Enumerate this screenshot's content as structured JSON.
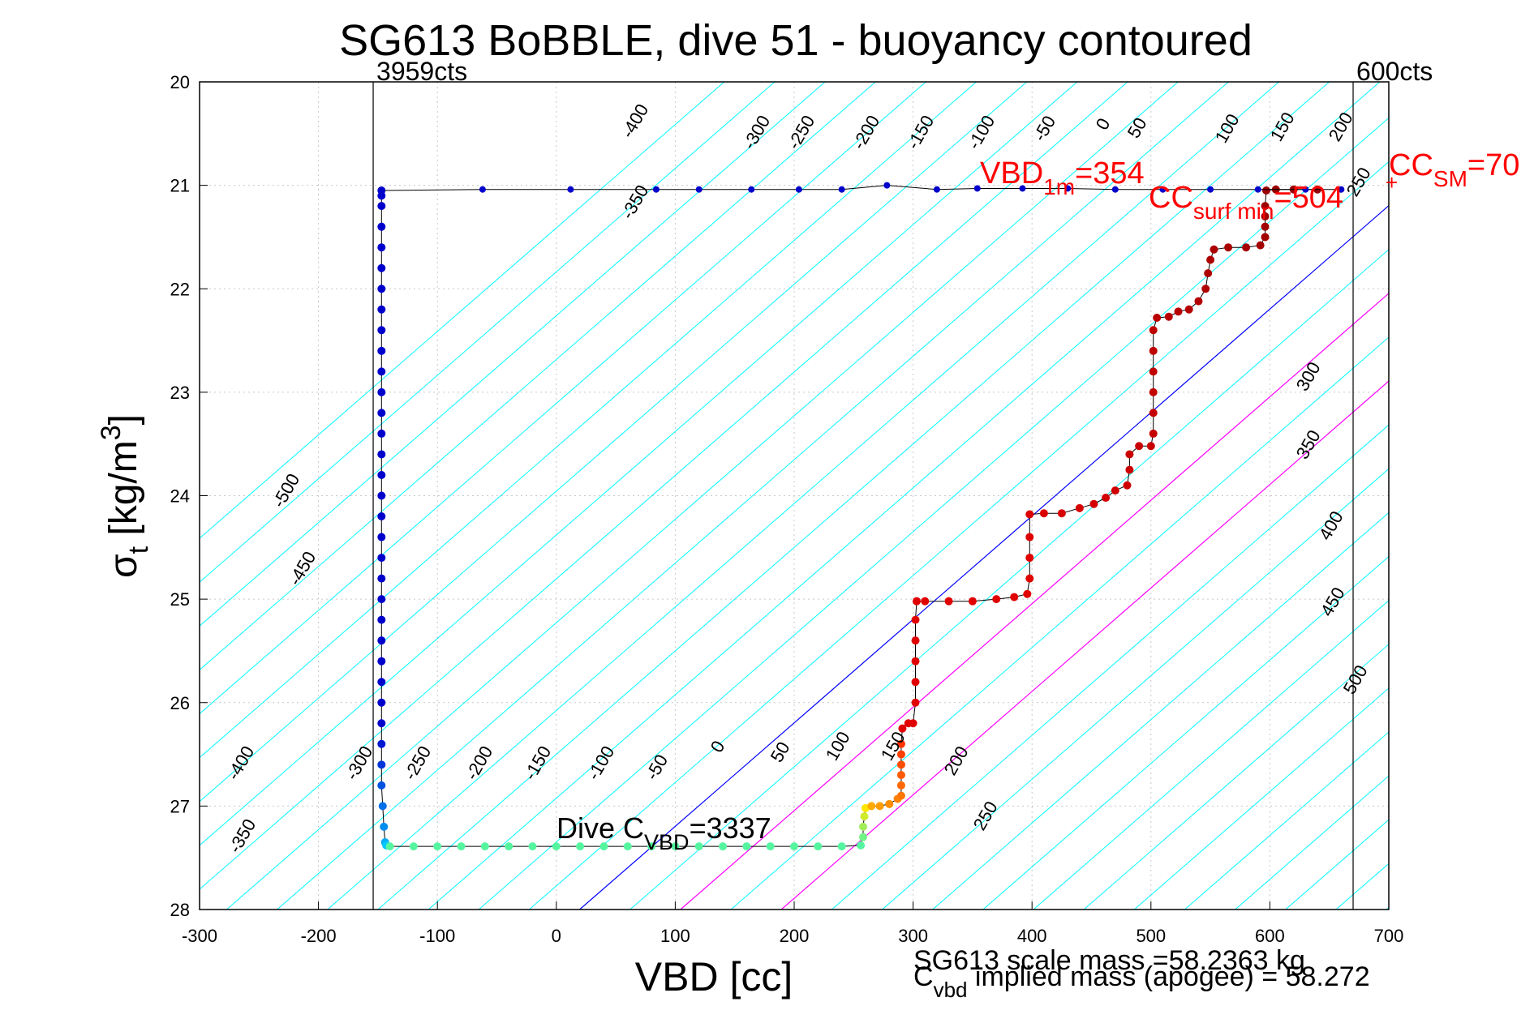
{
  "figure": {
    "title": "SG613 BoBBLE, dive 51 - buoyancy contoured",
    "xlabel": "VBD [cc]",
    "ylabel_base": "σ",
    "ylabel_sub": "t",
    "ylabel_rest": " [kg/m",
    "ylabel_sup": "3",
    "ylabel_close": "]",
    "footer_line1": "SG613 scale mass =58.2363 kg",
    "footer_line2_base": "C",
    "footer_line2_sub": "vbd",
    "footer_line2_rest": " implied mass (apogee) = 58.272"
  },
  "colors": {
    "contour": "#00ffff",
    "zero_contour": "#0000ff",
    "magenta": "#ff00ff",
    "red_text": "#ff0000",
    "dive_blue": "#0000cc",
    "climb_red": "#990000",
    "grid": "#c8c8c8",
    "axis": "#000000"
  },
  "chart_data": {
    "type": "scatter",
    "xlim": [
      -300,
      700
    ],
    "ylim": [
      28,
      20
    ],
    "xticks": [
      -300,
      -200,
      -100,
      0,
      100,
      200,
      300,
      400,
      500,
      600,
      700
    ],
    "yticks": [
      20,
      21,
      22,
      23,
      24,
      25,
      26,
      27,
      28
    ],
    "grid": true,
    "vertical_lines": [
      {
        "x": -154,
        "label": "3959cts"
      },
      {
        "x": 670,
        "label": "600cts"
      }
    ],
    "annotations": {
      "vbd_1m": {
        "base": "VBD",
        "sub": "1m",
        "rest": "=354"
      },
      "cc_surf_min": {
        "base": "CC",
        "sub": "surf min",
        "rest": "=504"
      },
      "cc_sm": {
        "base": "CC",
        "sub": "SM",
        "rest": "=70"
      },
      "dive_cvbd": {
        "base": "Dive C",
        "sub": "VBD",
        "rest": "=3337"
      }
    },
    "contour_labels_top": [
      "-400",
      "-350",
      "-300",
      "-250",
      "-200",
      "-150",
      "-100",
      "-50",
      "0",
      "50",
      "100",
      "150",
      "200",
      "250",
      "300",
      "350",
      "400",
      "450",
      "500"
    ],
    "contour_labels_bottom": [
      "-500",
      "-450",
      "-400",
      "-350",
      "-300",
      "-250",
      "-200",
      "-150",
      "-100",
      "-50",
      "0",
      "50",
      "100",
      "150",
      "200",
      "250"
    ],
    "series": [
      {
        "name": "dive",
        "points": [
          [
            -147,
            21.05
          ],
          [
            -147,
            21.1
          ],
          [
            -147,
            21.2
          ],
          [
            -147,
            21.4
          ],
          [
            -147,
            21.6
          ],
          [
            -147,
            21.8
          ],
          [
            -147,
            22.0
          ],
          [
            -147,
            22.2
          ],
          [
            -147,
            22.4
          ],
          [
            -147,
            22.6
          ],
          [
            -147,
            22.8
          ],
          [
            -147,
            23.0
          ],
          [
            -147,
            23.2
          ],
          [
            -147,
            23.4
          ],
          [
            -147,
            23.6
          ],
          [
            -147,
            23.8
          ],
          [
            -147,
            24.0
          ],
          [
            -147,
            24.2
          ],
          [
            -147,
            24.4
          ],
          [
            -147,
            24.6
          ],
          [
            -147,
            24.8
          ],
          [
            -147,
            25.0
          ],
          [
            -147,
            25.2
          ],
          [
            -147,
            25.4
          ],
          [
            -147,
            25.6
          ],
          [
            -147,
            25.8
          ],
          [
            -147,
            26.0
          ],
          [
            -147,
            26.2
          ],
          [
            -147,
            26.4
          ],
          [
            -147,
            26.6
          ],
          [
            -147,
            26.8
          ],
          [
            -146,
            27.0
          ],
          [
            -145,
            27.2
          ],
          [
            -144,
            27.35
          ],
          [
            -143,
            27.38
          ]
        ]
      },
      {
        "name": "bottom",
        "points": [
          [
            -140,
            27.39
          ],
          [
            -120,
            27.39
          ],
          [
            -100,
            27.39
          ],
          [
            -80,
            27.39
          ],
          [
            -60,
            27.39
          ],
          [
            -40,
            27.39
          ],
          [
            -20,
            27.39
          ],
          [
            0,
            27.39
          ],
          [
            20,
            27.39
          ],
          [
            40,
            27.39
          ],
          [
            60,
            27.39
          ],
          [
            80,
            27.39
          ],
          [
            100,
            27.39
          ],
          [
            120,
            27.39
          ],
          [
            140,
            27.39
          ],
          [
            160,
            27.39
          ],
          [
            180,
            27.39
          ],
          [
            200,
            27.39
          ],
          [
            220,
            27.39
          ],
          [
            240,
            27.39
          ],
          [
            256,
            27.38
          ],
          [
            258,
            27.3
          ],
          [
            258,
            27.2
          ],
          [
            259,
            27.1
          ],
          [
            260,
            27.02
          ]
        ]
      },
      {
        "name": "climb",
        "points": [
          [
            265,
            27.0
          ],
          [
            272,
            27.0
          ],
          [
            280,
            26.98
          ],
          [
            287,
            26.93
          ],
          [
            290,
            26.9
          ],
          [
            290,
            26.8
          ],
          [
            290,
            26.7
          ],
          [
            290,
            26.6
          ],
          [
            290,
            26.5
          ],
          [
            290,
            26.4
          ],
          [
            291,
            26.25
          ],
          [
            296,
            26.2
          ],
          [
            300,
            26.2
          ],
          [
            302,
            26.0
          ],
          [
            302,
            25.8
          ],
          [
            302,
            25.6
          ],
          [
            302,
            25.4
          ],
          [
            302,
            25.2
          ],
          [
            303,
            25.02
          ],
          [
            310,
            25.02
          ],
          [
            330,
            25.02
          ],
          [
            350,
            25.02
          ],
          [
            370,
            25.0
          ],
          [
            385,
            24.98
          ],
          [
            396,
            24.95
          ],
          [
            398,
            24.8
          ],
          [
            398,
            24.6
          ],
          [
            398,
            24.4
          ],
          [
            398,
            24.18
          ],
          [
            410,
            24.17
          ],
          [
            425,
            24.17
          ],
          [
            440,
            24.12
          ],
          [
            452,
            24.08
          ],
          [
            462,
            24.02
          ],
          [
            470,
            23.95
          ],
          [
            480,
            23.9
          ],
          [
            482,
            23.75
          ],
          [
            482,
            23.6
          ],
          [
            490,
            23.52
          ],
          [
            500,
            23.52
          ],
          [
            502,
            23.4
          ],
          [
            502,
            23.2
          ],
          [
            502,
            23.0
          ],
          [
            502,
            22.8
          ],
          [
            502,
            22.6
          ],
          [
            502,
            22.4
          ],
          [
            505,
            22.28
          ],
          [
            515,
            22.27
          ],
          [
            523,
            22.22
          ],
          [
            532,
            22.2
          ],
          [
            540,
            22.12
          ],
          [
            546,
            22.0
          ],
          [
            548,
            21.85
          ],
          [
            550,
            21.72
          ],
          [
            553,
            21.62
          ],
          [
            565,
            21.6
          ],
          [
            580,
            21.6
          ],
          [
            592,
            21.58
          ],
          [
            596,
            21.5
          ],
          [
            596,
            21.4
          ],
          [
            596,
            21.3
          ],
          [
            596,
            21.2
          ],
          [
            597,
            21.05
          ],
          [
            605,
            21.04
          ],
          [
            620,
            21.04
          ],
          [
            640,
            21.04
          ]
        ]
      },
      {
        "name": "surface",
        "points": [
          [
            -147,
            21.05
          ],
          [
            -62,
            21.04
          ],
          [
            12,
            21.04
          ],
          [
            84,
            21.04
          ],
          [
            120,
            21.04
          ],
          [
            164,
            21.04
          ],
          [
            204,
            21.04
          ],
          [
            240,
            21.04
          ],
          [
            278,
            21.0
          ],
          [
            320,
            21.04
          ],
          [
            354,
            21.03
          ],
          [
            392,
            21.03
          ],
          [
            430,
            21.03
          ],
          [
            470,
            21.04
          ],
          [
            510,
            21.04
          ],
          [
            550,
            21.04
          ],
          [
            590,
            21.04
          ],
          [
            630,
            21.04
          ],
          [
            660,
            21.04
          ]
        ]
      }
    ]
  }
}
